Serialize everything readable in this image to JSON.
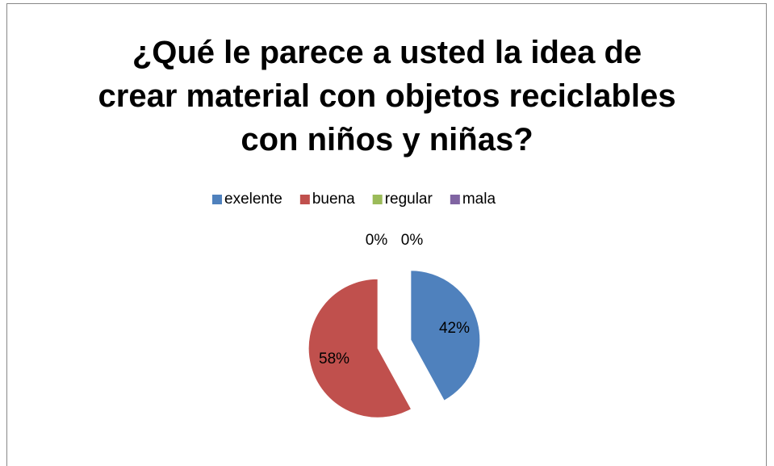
{
  "chart_data": {
    "type": "pie",
    "title": "¿Qué le parece a usted la idea de crear material con objetos reciclables con niños y niñas?",
    "categories": [
      "exelente",
      "buena",
      "regular",
      "mala"
    ],
    "values": [
      42,
      58,
      0,
      0
    ],
    "value_labels": [
      "42%",
      "58%",
      "0%",
      "0%"
    ],
    "colors": [
      "#4f81bd",
      "#c0504d",
      "#9bbb59",
      "#8064a2"
    ],
    "legend": "top"
  }
}
